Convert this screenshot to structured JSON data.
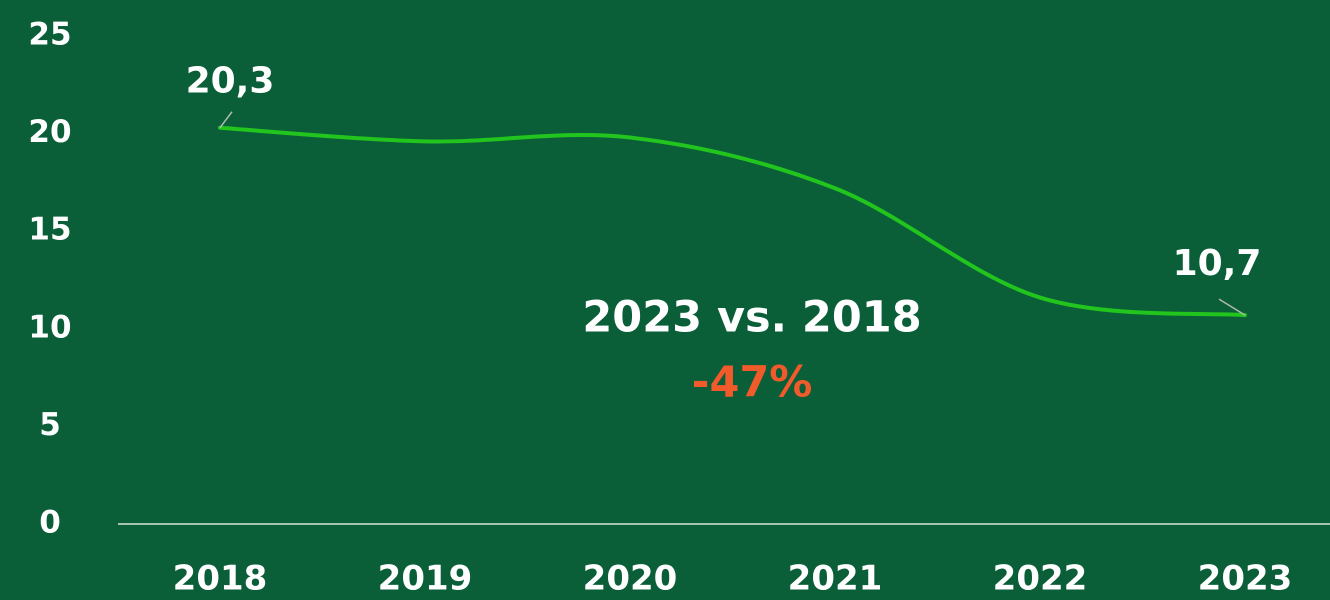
{
  "chart_data": {
    "type": "line",
    "categories": [
      "2018",
      "2019",
      "2020",
      "2021",
      "2022",
      "2023"
    ],
    "series": [
      {
        "name": null,
        "color": "#22c41e",
        "values": [
          20.3,
          19.6,
          19.8,
          17.2,
          11.6,
          10.7
        ],
        "value_labels": [
          "20,3",
          null,
          null,
          null,
          null,
          "10,7"
        ]
      }
    ],
    "ylim": [
      0,
      25
    ],
    "yticks": [
      0,
      5,
      10,
      15,
      20,
      25
    ],
    "annotations": [
      {
        "text": "2023 vs. 2018",
        "color": "#ffffff"
      },
      {
        "text": "-47%",
        "color": "#f15a2b"
      }
    ],
    "background": "#0a5e38",
    "axis_color": "#d8e6dc"
  }
}
